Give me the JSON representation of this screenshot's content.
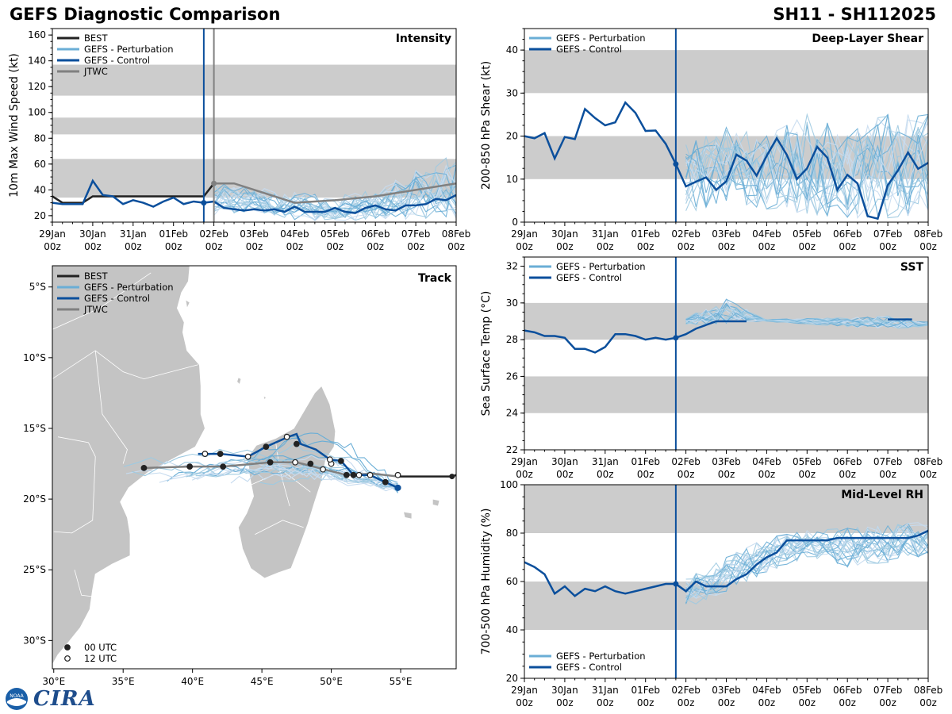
{
  "header": {
    "title": "GEFS Diagnostic Comparison",
    "storm": "SH11 - SH112025"
  },
  "logo": {
    "text": "CIRA",
    "seal": "NOAA"
  },
  "colors": {
    "best": "#222222",
    "perturbation": "#6aaed6",
    "control": "#0b4f9c",
    "jtwc": "#808080",
    "band": "#cccccc",
    "land": "#c4c4c4",
    "vline_current": "#0b4f9c",
    "vline_jtwc": "#808080"
  },
  "time_axis": {
    "labels": [
      "29Jan\n00z",
      "30Jan\n00z",
      "31Jan\n00z",
      "01Feb\n00z",
      "02Feb\n00z",
      "03Feb\n00z",
      "04Feb\n00z",
      "05Feb\n00z",
      "06Feb\n00z",
      "07Feb\n00z",
      "08Feb\n00z"
    ],
    "range": [
      0,
      10
    ],
    "current_day": 3.75,
    "jtwc_day": 4.0
  },
  "chart_data": [
    {
      "id": "intensity",
      "type": "line",
      "title": "Intensity",
      "ylabel": "10m Max Wind Speed (kt)",
      "ylim": [
        15,
        165
      ],
      "yticks": [
        20,
        40,
        60,
        80,
        100,
        120,
        140,
        160
      ],
      "bands": [
        [
          34,
          64
        ],
        [
          83,
          96
        ],
        [
          113,
          137
        ]
      ],
      "legend": [
        "BEST",
        "GEFS - Perturbation",
        "GEFS - Control",
        "JTWC"
      ],
      "legend_position": "top-left",
      "vlines": [
        "current",
        "jtwc"
      ],
      "best": {
        "x": [
          0,
          0.25,
          0.5,
          0.75,
          1,
          1.25,
          1.5,
          1.75,
          2,
          2.25,
          2.5,
          2.75,
          3,
          3.25,
          3.5,
          3.75,
          4
        ],
        "y": [
          35,
          30,
          30,
          30,
          35,
          35,
          35,
          35,
          35,
          35,
          35,
          35,
          35,
          35,
          35,
          35,
          45
        ]
      },
      "control": {
        "x": [
          0,
          0.25,
          0.5,
          0.75,
          1,
          1.25,
          1.5,
          1.75,
          2,
          2.25,
          2.5,
          2.75,
          3,
          3.25,
          3.5,
          3.75,
          4,
          4.25,
          4.5,
          4.75,
          5,
          5.25,
          5.5,
          5.75,
          6,
          6.25,
          6.5,
          6.75,
          7,
          7.25,
          7.5,
          7.75,
          8,
          8.25,
          8.5,
          8.75,
          9,
          9.25,
          9.5,
          9.75,
          10
        ],
        "y": [
          30,
          29,
          29,
          29,
          47,
          36,
          35,
          29,
          32,
          30,
          27,
          31,
          34,
          29,
          31,
          30,
          31,
          26,
          25,
          24,
          25,
          24,
          25,
          23,
          27,
          23,
          23,
          23,
          26,
          23,
          22,
          26,
          28,
          25,
          24,
          28,
          28,
          29,
          33,
          32,
          36
        ]
      },
      "jtwc": {
        "x": [
          4.0,
          4.5,
          5.0,
          6.0,
          7.0,
          8.0,
          9.0,
          10.0
        ],
        "y": [
          45,
          45,
          40,
          30,
          32,
          35,
          40,
          45
        ]
      },
      "perturbation_range": {
        "x": [
          4,
          5,
          6,
          7,
          8,
          9,
          10
        ],
        "low": [
          20,
          24,
          17,
          15,
          18,
          17,
          18
        ],
        "high": [
          45,
          42,
          38,
          35,
          40,
          55,
          68
        ]
      }
    },
    {
      "id": "shear",
      "type": "line",
      "title": "Deep-Layer Shear",
      "ylabel": "200-850 hPa Shear (kt)",
      "ylim": [
        0,
        45
      ],
      "yticks": [
        0,
        10,
        20,
        30,
        40
      ],
      "bands": [
        [
          10,
          20
        ],
        [
          30,
          40
        ]
      ],
      "legend": [
        "GEFS - Perturbation",
        "GEFS - Control"
      ],
      "legend_position": "top-left",
      "vlines": [
        "current"
      ],
      "control": {
        "x": [
          0,
          0.25,
          0.5,
          0.75,
          1,
          1.25,
          1.5,
          1.75,
          2,
          2.25,
          2.5,
          2.75,
          3,
          3.25,
          3.5,
          3.75,
          4,
          4.25,
          4.5,
          4.75,
          5,
          5.25,
          5.5,
          5.75,
          6,
          6.25,
          6.5,
          6.75,
          7,
          7.25,
          7.5,
          7.75,
          8,
          8.25,
          8.5,
          8.75,
          9,
          9.25,
          9.5,
          9.75,
          10
        ],
        "y": [
          20,
          19.5,
          20.7,
          14.8,
          19.8,
          19.3,
          26.3,
          24.2,
          22.5,
          23.2,
          27.8,
          25.4,
          21.2,
          21.3,
          18.2,
          13.5,
          8.3,
          9.4,
          10.4,
          7.5,
          9.5,
          15.7,
          14.3,
          10.8,
          15.4,
          19.5,
          15.6,
          10.0,
          12.5,
          17.5,
          15.0,
          7.5,
          11.0,
          9.0,
          1.4,
          0.8,
          8.6,
          12.0,
          16.2,
          12.4,
          13.8
        ]
      },
      "perturbation_range": {
        "x": [
          4,
          5,
          6,
          7,
          8,
          9,
          10
        ],
        "low": [
          2,
          5,
          3,
          2,
          1,
          1,
          2
        ],
        "high": [
          18,
          22,
          20,
          25,
          22,
          25,
          25
        ]
      }
    },
    {
      "id": "sst",
      "type": "line",
      "title": "SST",
      "ylabel": "Sea Surface Temp (°C)",
      "ylim": [
        22,
        32.5
      ],
      "yticks": [
        22,
        24,
        26,
        28,
        30,
        32
      ],
      "bands": [
        [
          24,
          26
        ],
        [
          28,
          30
        ]
      ],
      "legend": [
        "GEFS - Perturbation",
        "GEFS - Control"
      ],
      "legend_position": "top-left",
      "vlines": [
        "current"
      ],
      "control": {
        "x": [
          0,
          0.25,
          0.5,
          0.75,
          1,
          1.25,
          1.5,
          1.75,
          2,
          2.25,
          2.5,
          2.75,
          3,
          3.25,
          3.5,
          3.75,
          4,
          4.25,
          4.5,
          4.75,
          5,
          5.25,
          5.5
        ],
        "y": [
          28.5,
          28.4,
          28.2,
          28.2,
          28.1,
          27.5,
          27.5,
          27.3,
          27.6,
          28.3,
          28.3,
          28.2,
          28.0,
          28.1,
          28.0,
          28.1,
          28.3,
          28.6,
          28.8,
          29.0,
          29.0,
          29.0,
          29.0
        ]
      },
      "control_tail": {
        "x": [
          9.0,
          9.2,
          9.4,
          9.6
        ],
        "y": [
          29.1,
          29.1,
          29.1,
          29.1
        ]
      },
      "perturbation_range": {
        "x": [
          4,
          5,
          6,
          8,
          9,
          10
        ],
        "low": [
          28.8,
          28.9,
          29.0,
          28.7,
          28.6,
          28.7
        ],
        "high": [
          29.2,
          30.2,
          29.1,
          29.2,
          29.3,
          29.0
        ]
      }
    },
    {
      "id": "rh",
      "type": "line",
      "title": "Mid-Level RH",
      "ylabel": "700-500 hPa Humidity (%)",
      "ylim": [
        20,
        100
      ],
      "yticks": [
        20,
        40,
        60,
        80,
        100
      ],
      "bands": [
        [
          40,
          60
        ],
        [
          80,
          100
        ]
      ],
      "legend": [
        "GEFS - Perturbation",
        "GEFS - Control"
      ],
      "legend_position": "bottom-left",
      "vlines": [
        "current"
      ],
      "control": {
        "x": [
          0,
          0.25,
          0.5,
          0.75,
          1,
          1.25,
          1.5,
          1.75,
          2,
          2.25,
          2.5,
          2.75,
          3,
          3.25,
          3.5,
          3.75,
          4,
          4.25,
          4.5,
          4.75,
          5,
          5.25,
          5.5,
          5.75,
          6,
          6.25,
          6.5,
          6.75,
          7,
          7.25,
          7.5,
          7.75,
          8,
          8.25,
          8.5,
          8.75,
          9,
          9.25,
          9.5,
          9.75,
          10
        ],
        "y": [
          68,
          66,
          63,
          55,
          58,
          54,
          57,
          56,
          58,
          56,
          55,
          56,
          57,
          58,
          59,
          59,
          56,
          60,
          58,
          58,
          58,
          61,
          63,
          67,
          70,
          72,
          77,
          77,
          77,
          77,
          77,
          78,
          78,
          78,
          78,
          78,
          78,
          78,
          78,
          79,
          81
        ]
      },
      "perturbation_range": {
        "x": [
          4,
          5,
          6,
          7,
          8,
          9,
          10
        ],
        "low": [
          49,
          56,
          64,
          70,
          66,
          68,
          71
        ],
        "high": [
          61,
          70,
          78,
          81,
          82,
          83,
          85
        ]
      }
    },
    {
      "id": "track",
      "type": "scatter",
      "title": "Track",
      "xlim": [
        29.9,
        59.0
      ],
      "ylim": [
        -32.0,
        -3.5
      ],
      "xticks": [
        {
          "v": 30,
          "label": "30°E"
        },
        {
          "v": 35,
          "label": "35°E"
        },
        {
          "v": 40,
          "label": "40°E"
        },
        {
          "v": 45,
          "label": "45°E"
        },
        {
          "v": 50,
          "label": "50°E"
        },
        {
          "v": 55,
          "label": "55°E"
        }
      ],
      "yticks": [
        {
          "v": -5,
          "label": "5°S"
        },
        {
          "v": -10,
          "label": "10°S"
        },
        {
          "v": -15,
          "label": "15°S"
        },
        {
          "v": -20,
          "label": "20°S"
        },
        {
          "v": -25,
          "label": "25°S"
        },
        {
          "v": -30,
          "label": "30°S"
        }
      ],
      "legend": [
        "BEST",
        "GEFS - Perturbation",
        "GEFS - Control",
        "JTWC"
      ],
      "legend_position": "top-left",
      "marker_legend": [
        "00 UTC",
        "12 UTC"
      ],
      "best": {
        "lon": [
          59.0,
          58.7,
          58.0,
          56.0,
          54.9
        ],
        "lat": [
          -18.3,
          -18.4,
          -18.4,
          -18.4,
          -18.4
        ]
      },
      "control": {
        "lon": [
          54.8,
          53.9,
          52.8,
          51.6,
          50.7,
          49.9,
          48.9,
          47.8,
          47.5,
          46.9,
          45.3,
          44.0,
          42.0,
          40.9,
          40.4
        ],
        "lat": [
          -19.2,
          -18.8,
          -18.3,
          -18.3,
          -17.3,
          -17.2,
          -16.5,
          -16.1,
          -15.4,
          -15.6,
          -16.3,
          -17.0,
          -16.8,
          -16.8,
          -16.8
        ]
      },
      "control_points": [
        {
          "lon": 54.8,
          "lat": -19.2,
          "hour": "00"
        },
        {
          "lon": 53.9,
          "lat": -18.8,
          "hour": "00"
        },
        {
          "lon": 52.8,
          "lat": -18.3,
          "hour": "12"
        },
        {
          "lon": 51.6,
          "lat": -18.3,
          "hour": "00"
        },
        {
          "lon": 50.7,
          "lat": -17.3,
          "hour": "00"
        },
        {
          "lon": 49.9,
          "lat": -17.2,
          "hour": "12"
        },
        {
          "lon": 47.5,
          "lat": -16.1,
          "hour": "00"
        },
        {
          "lon": 46.8,
          "lat": -15.6,
          "hour": "12"
        },
        {
          "lon": 45.3,
          "lat": -16.3,
          "hour": "00"
        },
        {
          "lon": 44.0,
          "lat": -17.0,
          "hour": "12"
        },
        {
          "lon": 42.0,
          "lat": -16.8,
          "hour": "00"
        },
        {
          "lon": 40.9,
          "lat": -16.8,
          "hour": "12"
        }
      ],
      "jtwc": {
        "lon": [
          54.8,
          53.0,
          51.1,
          49.5,
          47.5,
          45.6,
          42.2,
          39.8,
          36.5
        ],
        "lat": [
          -18.4,
          -18.2,
          -18.3,
          -17.9,
          -17.4,
          -17.4,
          -17.7,
          -17.7,
          -17.8
        ]
      },
      "jtwc_points": [
        {
          "lon": 54.8,
          "lat": -18.3,
          "hour": "12"
        },
        {
          "lon": 52.0,
          "lat": -18.3,
          "hour": "12"
        },
        {
          "lon": 51.1,
          "lat": -18.3,
          "hour": "00"
        },
        {
          "lon": 50.0,
          "lat": -17.5,
          "hour": "12"
        },
        {
          "lon": 49.4,
          "lat": -17.9,
          "hour": "12"
        },
        {
          "lon": 48.5,
          "lat": -17.5,
          "hour": "00"
        },
        {
          "lon": 47.4,
          "lat": -17.4,
          "hour": "12"
        },
        {
          "lon": 45.6,
          "lat": -17.4,
          "hour": "00"
        },
        {
          "lon": 42.2,
          "lat": -17.7,
          "hour": "00"
        },
        {
          "lon": 39.8,
          "lat": -17.7,
          "hour": "00"
        },
        {
          "lon": 36.5,
          "lat": -17.8,
          "hour": "00"
        }
      ]
    }
  ]
}
